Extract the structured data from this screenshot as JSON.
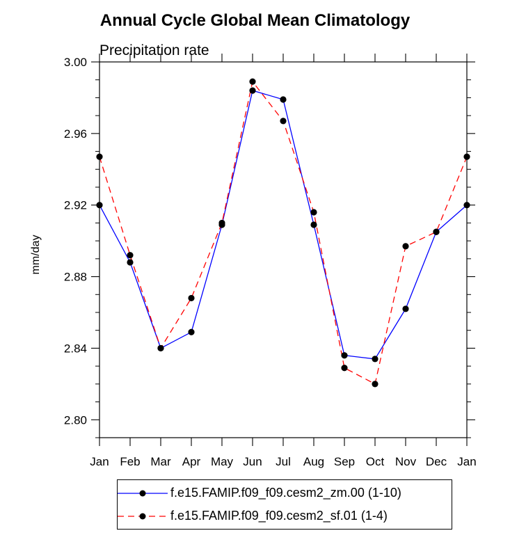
{
  "chart_data": {
    "type": "line",
    "title": "Annual Cycle Global Mean Climatology",
    "subtitle": "Precipitation rate",
    "ylabel": "mm/day",
    "xlabel": "",
    "ylim": [
      2.79,
      3.0
    ],
    "yticks": [
      "3.00",
      "2.96",
      "2.92",
      "2.88",
      "2.84",
      "2.80"
    ],
    "ytick_values": [
      3.0,
      2.96,
      2.92,
      2.88,
      2.84,
      2.8
    ],
    "categories": [
      "Jan",
      "Feb",
      "Mar",
      "Apr",
      "May",
      "Jun",
      "Jul",
      "Aug",
      "Sep",
      "Oct",
      "Nov",
      "Dec",
      "Jan"
    ],
    "series": [
      {
        "name": "f.e15.FAMIP.f09_f09.cesm2_zm.00 (1-10)",
        "color": "#0000ff",
        "style": "solid",
        "values": [
          2.92,
          2.888,
          2.84,
          2.849,
          2.909,
          2.984,
          2.979,
          2.909,
          2.836,
          2.834,
          2.862,
          2.905,
          2.92
        ]
      },
      {
        "name": "f.e15.FAMIP.f09_f09.cesm2_sf.01 (1-4)",
        "color": "#ff0000",
        "style": "dashed",
        "values": [
          2.947,
          2.892,
          2.84,
          2.868,
          2.91,
          2.989,
          2.967,
          2.916,
          2.829,
          2.82,
          2.897,
          2.905,
          2.947
        ]
      }
    ],
    "legend_position": "bottom"
  }
}
